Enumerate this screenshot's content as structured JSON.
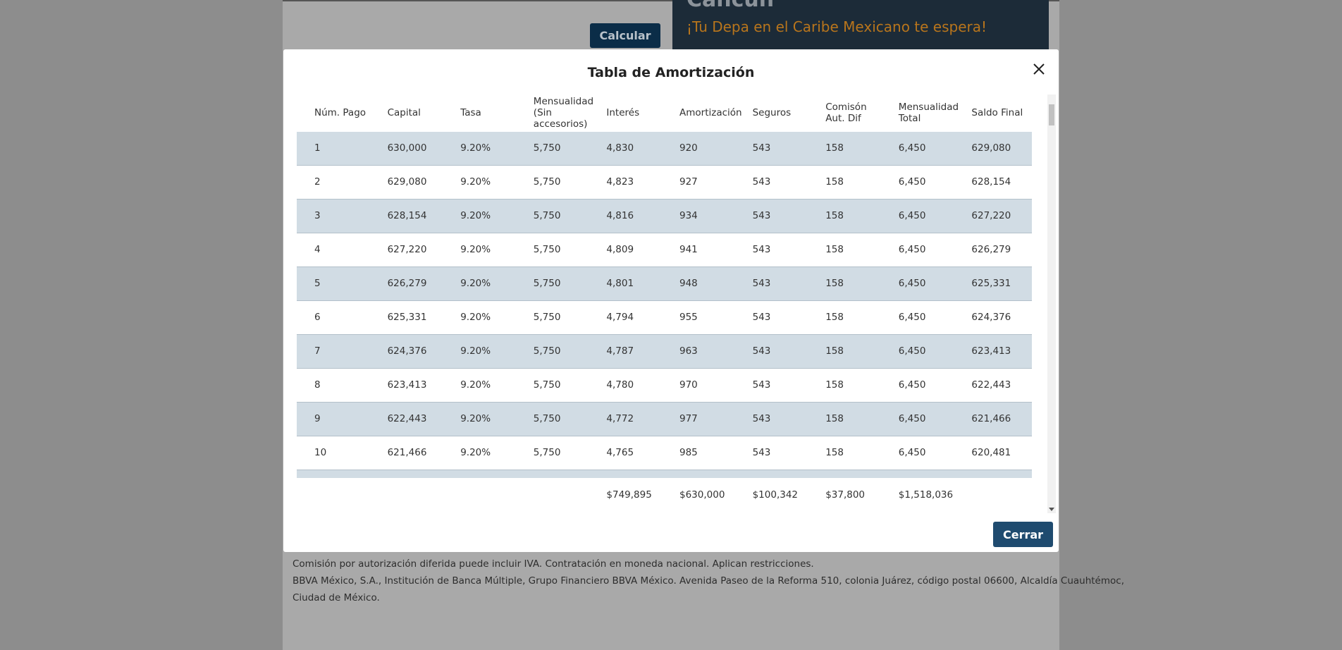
{
  "background": {
    "button": "Calcular",
    "banner_title": "Cancún",
    "banner_subtitle": "¡Tu Depa en el Caribe Mexicano te espera!"
  },
  "modal": {
    "title": "Tabla de Amortización",
    "table": {
      "headers": [
        "Núm. Pago",
        "Capital",
        "Tasa",
        "Mensualidad (Sin accesorios)",
        "Interés",
        "Amortización",
        "Seguros",
        "Comisón Aut. Dif",
        "Mensualidad Total",
        "Saldo Final"
      ],
      "rows": [
        [
          "1",
          "630,000",
          "9.20%",
          "5,750",
          "4,830",
          "920",
          "543",
          "158",
          "6,450",
          "629,080"
        ],
        [
          "2",
          "629,080",
          "9.20%",
          "5,750",
          "4,823",
          "927",
          "543",
          "158",
          "6,450",
          "628,154"
        ],
        [
          "3",
          "628,154",
          "9.20%",
          "5,750",
          "4,816",
          "934",
          "543",
          "158",
          "6,450",
          "627,220"
        ],
        [
          "4",
          "627,220",
          "9.20%",
          "5,750",
          "4,809",
          "941",
          "543",
          "158",
          "6,450",
          "626,279"
        ],
        [
          "5",
          "626,279",
          "9.20%",
          "5,750",
          "4,801",
          "948",
          "543",
          "158",
          "6,450",
          "625,331"
        ],
        [
          "6",
          "625,331",
          "9.20%",
          "5,750",
          "4,794",
          "955",
          "543",
          "158",
          "6,450",
          "624,376"
        ],
        [
          "7",
          "624,376",
          "9.20%",
          "5,750",
          "4,787",
          "963",
          "543",
          "158",
          "6,450",
          "623,413"
        ],
        [
          "8",
          "623,413",
          "9.20%",
          "5,750",
          "4,780",
          "970",
          "543",
          "158",
          "6,450",
          "622,443"
        ],
        [
          "9",
          "622,443",
          "9.20%",
          "5,750",
          "4,772",
          "977",
          "543",
          "158",
          "6,450",
          "621,466"
        ],
        [
          "10",
          "621,466",
          "9.20%",
          "5,750",
          "4,765",
          "985",
          "543",
          "158",
          "6,450",
          "620,481"
        ]
      ],
      "totals": [
        "$749,895",
        "$630,000",
        "$100,342",
        "$37,800",
        "$1,518,036"
      ]
    },
    "close_button": "Cerrar"
  },
  "footer": [
    "Comisión por autorización diferida puede incluir IVA. Contratación en moneda nacional. Aplican restricciones.",
    "BBVA México, S.A., Institución de Banca Múltiple, Grupo Financiero BBVA México. Avenida Paseo de la Reforma 510, colonia Juárez, código postal 06600, Alcaldía Cuauhtémoc,",
    "Ciudad de México."
  ]
}
